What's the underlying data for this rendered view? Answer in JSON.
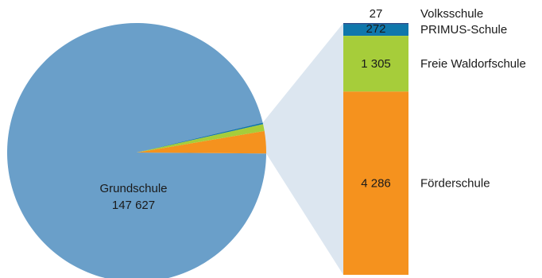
{
  "chart_data": {
    "type": "pie",
    "subtype": "pie-of-bar",
    "pie": {
      "slices": [
        {
          "label": "Grundschule",
          "value": 147627,
          "value_label": "147 627",
          "color": "#6a9fc9"
        },
        {
          "label": "Förderschule",
          "value": 4286,
          "color": "#f5921e"
        },
        {
          "label": "Freie Waldorfschule",
          "value": 1305,
          "color": "#a6cd3a"
        },
        {
          "label": "PRIMUS-Schule",
          "value": 272,
          "color": "#0f77ab"
        },
        {
          "label": "Volksschule",
          "value": 27,
          "color": "#2a4a8a"
        }
      ]
    },
    "bar": {
      "segments": [
        {
          "label": "Volksschule",
          "value": 27,
          "value_label": "27",
          "color": "#2a4a8a"
        },
        {
          "label": "PRIMUS-Schule",
          "value": 272,
          "value_label": "272",
          "color": "#0f77ab"
        },
        {
          "label": "Freie Waldorfschule",
          "value": 1305,
          "value_label": "1 305",
          "color": "#a6cd3a"
        },
        {
          "label": "Förderschule",
          "value": 4286,
          "value_label": "4 286",
          "color": "#f5921e"
        }
      ]
    },
    "connector_color": "#dce6f0"
  }
}
